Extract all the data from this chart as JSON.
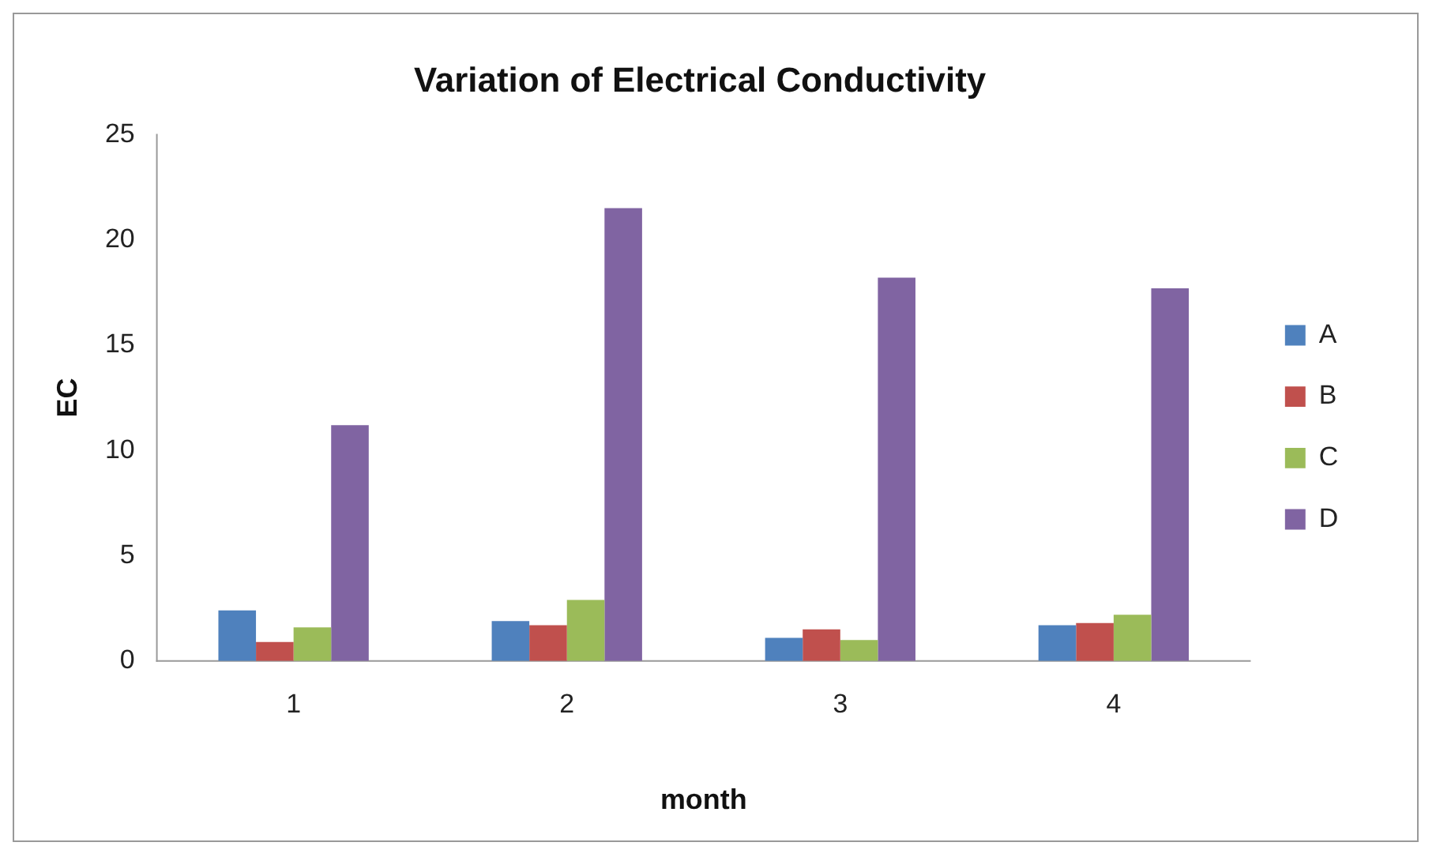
{
  "chart_data": {
    "type": "bar",
    "title": "Variation of Electrical Conductivity",
    "xlabel": "month",
    "ylabel": "EC",
    "categories": [
      "1",
      "2",
      "3",
      "4"
    ],
    "series": [
      {
        "name": "A",
        "color": "#4f81bd",
        "values": [
          2.4,
          1.9,
          1.1,
          1.7
        ]
      },
      {
        "name": "B",
        "color": "#c0504d",
        "values": [
          0.9,
          1.7,
          1.5,
          1.8
        ]
      },
      {
        "name": "C",
        "color": "#9bbb59",
        "values": [
          1.6,
          2.9,
          1.0,
          2.2
        ]
      },
      {
        "name": "D",
        "color": "#8064a2",
        "values": [
          11.2,
          21.5,
          18.2,
          17.7
        ]
      }
    ],
    "ylim": [
      0,
      25
    ],
    "yticks": [
      0,
      5,
      10,
      15,
      20,
      25
    ],
    "grid": false,
    "legend": "right"
  }
}
